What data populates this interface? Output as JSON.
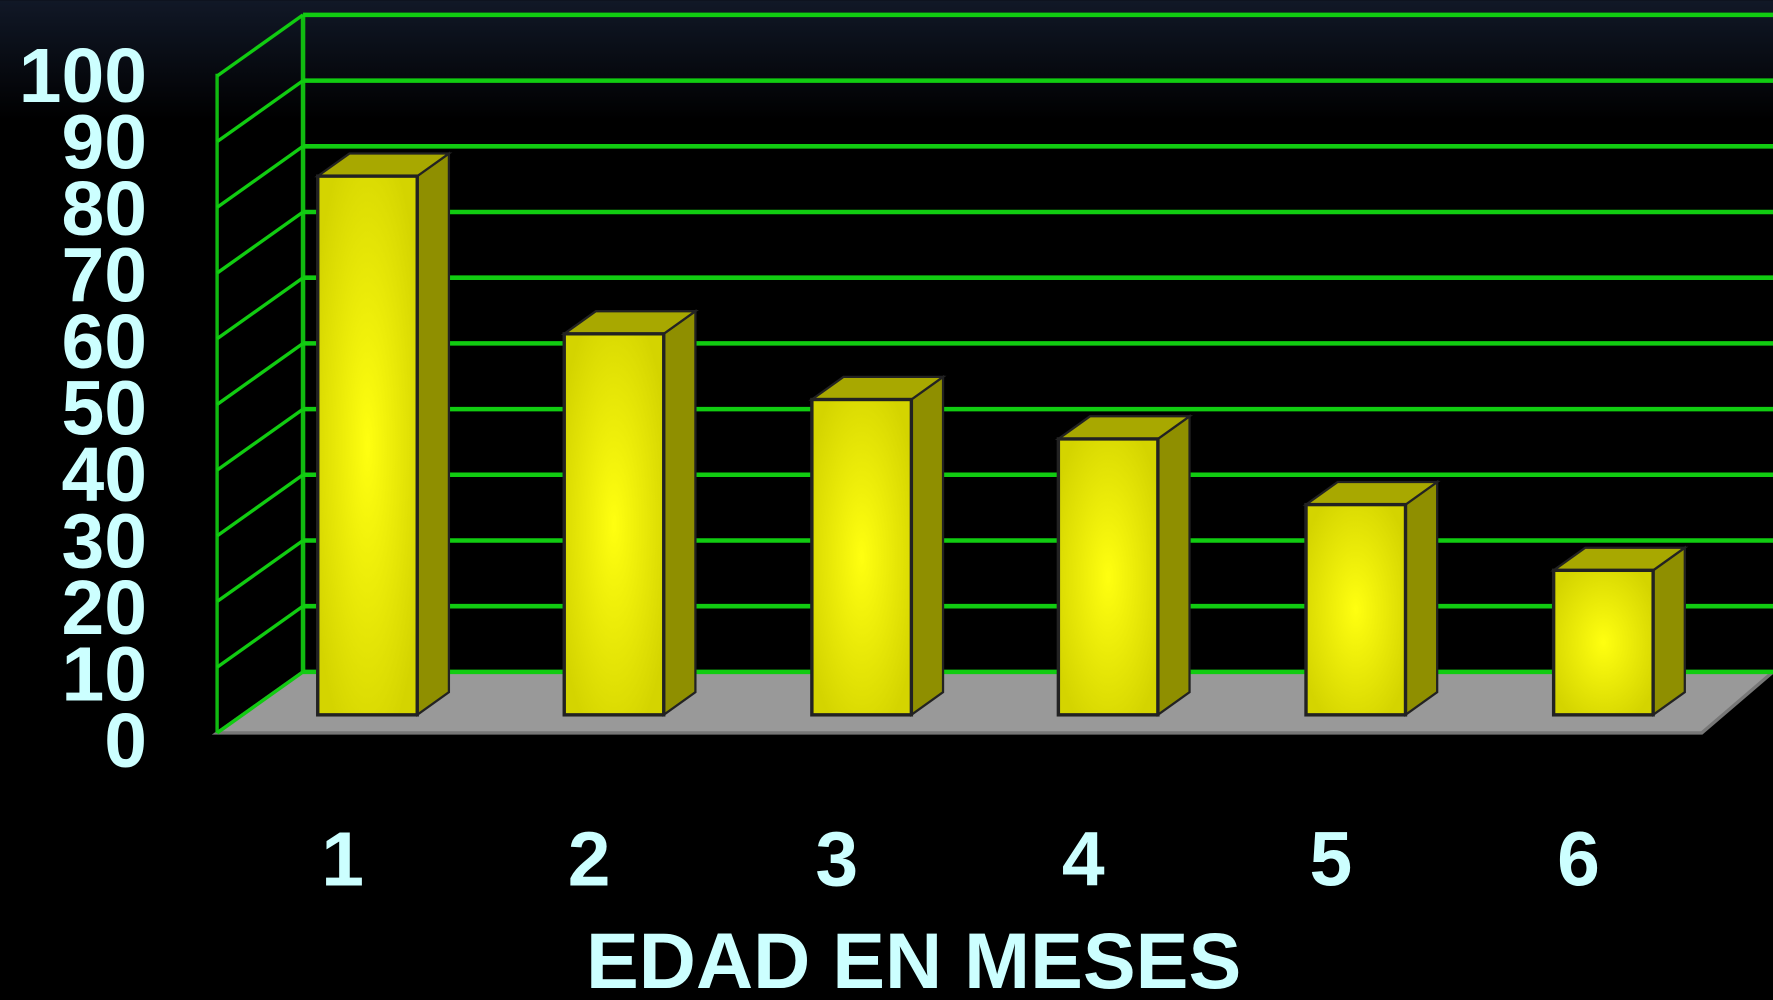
{
  "chart_data": {
    "type": "bar3d",
    "x_label": "EDAD EN MESES",
    "categories": [
      "1",
      "2",
      "3",
      "4",
      "5",
      "6"
    ],
    "values": [
      82,
      58,
      48,
      42,
      32,
      22
    ],
    "color": "#f0f000",
    "ylim": [
      0,
      100
    ],
    "yticks": [
      0,
      10,
      20,
      30,
      40,
      50,
      60,
      70,
      80,
      90,
      100
    ],
    "grid": true
  }
}
